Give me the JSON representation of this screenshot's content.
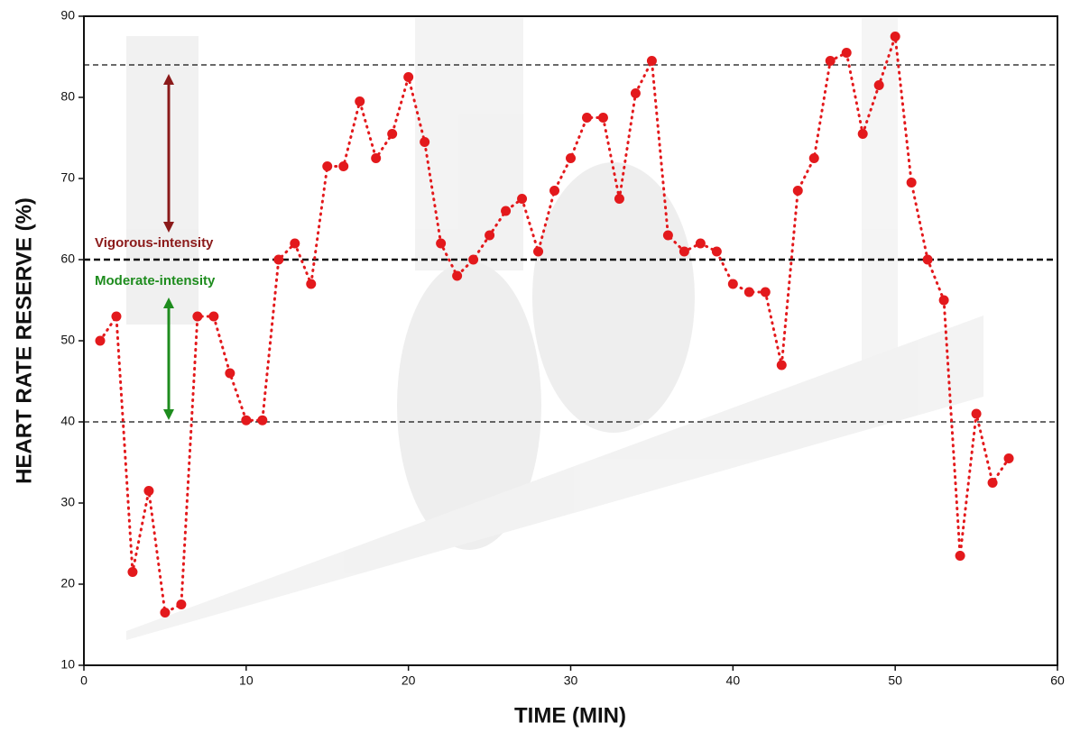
{
  "chart_data": {
    "type": "line",
    "x_label": "TIME (MIN)",
    "y_label": "HEART RATE RESERVE (%)",
    "x": [
      1,
      2,
      3,
      4,
      5,
      6,
      7,
      8,
      9,
      10,
      11,
      12,
      13,
      14,
      15,
      16,
      17,
      18,
      19,
      20,
      21,
      22,
      23,
      24,
      25,
      26,
      27,
      28,
      29,
      30,
      31,
      32,
      33,
      34,
      35,
      36,
      37,
      38,
      39,
      40,
      41,
      42,
      43,
      44,
      45,
      46,
      47,
      48,
      49,
      50,
      51,
      52,
      53,
      54,
      55,
      56,
      57
    ],
    "series": [
      {
        "color": "#e3191c",
        "values": [
          50,
          53,
          21.5,
          31.5,
          16.5,
          17.5,
          53,
          53,
          46,
          40.2,
          40.2,
          60,
          62,
          57,
          71.5,
          71.5,
          79.5,
          72.5,
          75.5,
          82.5,
          74.5,
          62,
          58,
          60,
          63,
          66,
          67.5,
          61,
          68.5,
          72.5,
          77.5,
          77.5,
          67.5,
          80.5,
          84.5,
          63,
          61,
          62,
          61,
          57,
          56,
          56,
          47,
          68.5,
          72.5,
          84.5,
          85.5,
          75.5,
          81.5,
          87.5,
          69.5,
          60,
          55,
          23.5,
          41,
          32.5,
          35.5
        ]
      }
    ],
    "xlim": [
      0,
      60
    ],
    "xticks": [
      0,
      10,
      20,
      30,
      40,
      50,
      60
    ],
    "ylim": [
      10,
      90
    ],
    "yticks": [
      10,
      20,
      30,
      40,
      50,
      60,
      70,
      80,
      90
    ],
    "reference_lines": [
      84,
      60,
      40
    ],
    "annotations": [
      {
        "text": "Vigorous-intensity",
        "color": "#8b1a1a"
      },
      {
        "text": "Moderate-intensity",
        "color": "#1e8c1e"
      }
    ]
  }
}
